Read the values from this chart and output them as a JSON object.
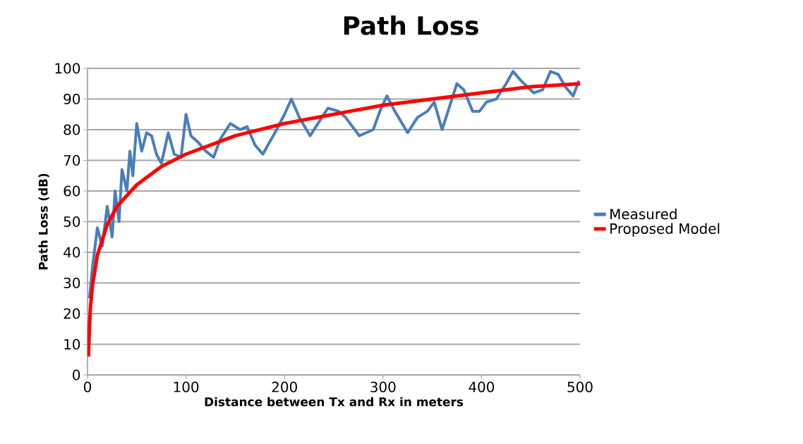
{
  "chart_data": {
    "type": "line",
    "title": "Path Loss",
    "xlabel": "Distance  between Tx and Rx in meters",
    "ylabel": "Path Loss (dB)",
    "xlim": [
      0,
      500
    ],
    "ylim": [
      0,
      100
    ],
    "xticks": [
      0,
      100,
      200,
      300,
      400,
      500
    ],
    "yticks": [
      0,
      10,
      20,
      30,
      40,
      50,
      60,
      70,
      80,
      90,
      100
    ],
    "grid": "y",
    "legend": "right",
    "marker": "none",
    "line_style": "solid",
    "series": [
      {
        "name": "Measured",
        "color": "#4a7ebb",
        "x": [
          2,
          5,
          10,
          15,
          20,
          25,
          28,
          32,
          35,
          40,
          43,
          46,
          50,
          55,
          60,
          65,
          70,
          75,
          82,
          88,
          95,
          100,
          105,
          112,
          120,
          128,
          135,
          145,
          155,
          162,
          170,
          178,
          185,
          192,
          200,
          207,
          215,
          226,
          236,
          244,
          255,
          262,
          276,
          290,
          298,
          304,
          312,
          325,
          335,
          345,
          352,
          360,
          368,
          375,
          382,
          391,
          398,
          405,
          415,
          425,
          432,
          440,
          453,
          462,
          470,
          478,
          485,
          493,
          499
        ],
        "values": [
          25,
          35,
          48,
          42,
          55,
          45,
          60,
          50,
          67,
          60,
          73,
          65,
          82,
          73,
          79,
          78,
          72,
          69,
          79,
          72,
          71,
          85,
          78,
          76,
          73,
          71,
          77,
          82,
          80,
          81,
          75,
          72,
          76,
          80,
          85,
          90,
          84,
          78,
          83,
          87,
          86,
          84,
          78,
          80,
          87,
          91,
          86,
          79,
          84,
          86,
          89,
          80,
          88,
          95,
          93,
          86,
          86,
          89,
          90,
          95,
          99,
          96,
          92,
          93,
          99,
          98,
          94,
          91,
          96
        ]
      },
      {
        "name": "Proposed Model",
        "color": "#ff0000",
        "x": [
          1,
          2,
          3,
          5,
          10,
          20,
          30,
          50,
          75,
          100,
          150,
          200,
          250,
          300,
          350,
          400,
          450,
          500
        ],
        "values": [
          6,
          16,
          22,
          29,
          39,
          49,
          55,
          62,
          68,
          72,
          78,
          82,
          85,
          88,
          90,
          92,
          94,
          95
        ]
      }
    ]
  }
}
